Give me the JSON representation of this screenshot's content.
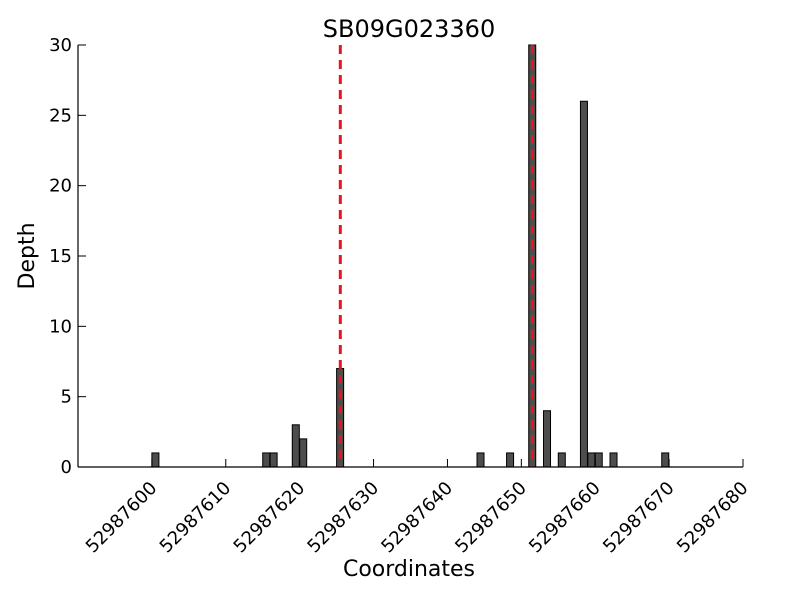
{
  "chart_data": {
    "type": "bar",
    "title": "SB09G023360",
    "xlabel": "Coordinates",
    "ylabel": "Depth",
    "xlim": [
      52987590,
      52987680
    ],
    "ylim": [
      0,
      30
    ],
    "x_ticks": [
      52987600,
      52987610,
      52987620,
      52987630,
      52987640,
      52987650,
      52987660,
      52987670,
      52987680
    ],
    "y_ticks": [
      0,
      5,
      10,
      15,
      20,
      25,
      30
    ],
    "grid": false,
    "bar_color": "#4d4d4d",
    "marker_color": "#e8141e",
    "bars": [
      {
        "x": 52987600,
        "y": 1
      },
      {
        "x": 52987615,
        "y": 1
      },
      {
        "x": 52987616,
        "y": 1
      },
      {
        "x": 52987619,
        "y": 3
      },
      {
        "x": 52987620,
        "y": 2
      },
      {
        "x": 52987625,
        "y": 7
      },
      {
        "x": 52987644,
        "y": 1
      },
      {
        "x": 52987648,
        "y": 1
      },
      {
        "x": 52987651,
        "y": 30
      },
      {
        "x": 52987653,
        "y": 4
      },
      {
        "x": 52987655,
        "y": 1
      },
      {
        "x": 52987658,
        "y": 26
      },
      {
        "x": 52987659,
        "y": 1
      },
      {
        "x": 52987660,
        "y": 1
      },
      {
        "x": 52987662,
        "y": 1
      },
      {
        "x": 52987669,
        "y": 1
      }
    ],
    "markers": [
      52987625.5,
      52987651.5
    ]
  }
}
